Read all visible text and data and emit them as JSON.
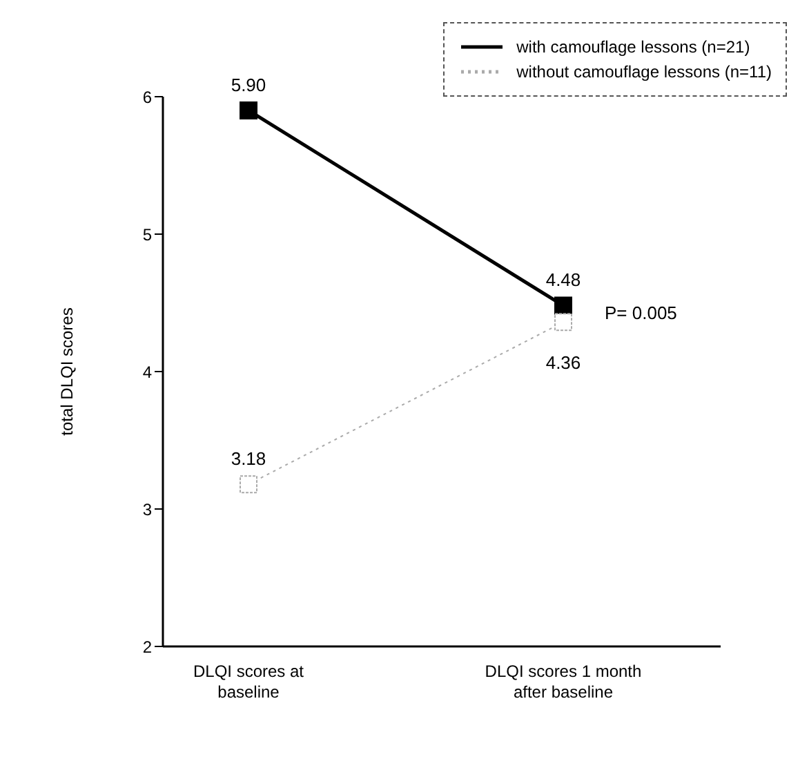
{
  "chart_data": {
    "type": "line",
    "categories": [
      "DLQI scores at baseline",
      "DLQI scores 1 month after baseline"
    ],
    "ylabel": "total DLQI scores",
    "ylim": [
      2,
      6
    ],
    "yticks": [
      2,
      3,
      4,
      5,
      6
    ],
    "grid": false,
    "legend": "top right",
    "marker": "square",
    "series": [
      {
        "name": "with camouflage lessons (n=21)",
        "color": "#000000",
        "line_style": "solid",
        "values": [
          5.9,
          4.48
        ],
        "value_labels": [
          "5.90",
          "4.48"
        ]
      },
      {
        "name": "without camouflage lessons (n=11)",
        "color": "#aaaaaa",
        "line_style": "dotted",
        "values": [
          3.18,
          4.36
        ],
        "value_labels": [
          "3.18",
          "4.36"
        ]
      }
    ],
    "annotations": [
      {
        "text": "P= 0.005",
        "x": "DLQI scores 1 month after baseline",
        "y": 4.42
      }
    ]
  }
}
